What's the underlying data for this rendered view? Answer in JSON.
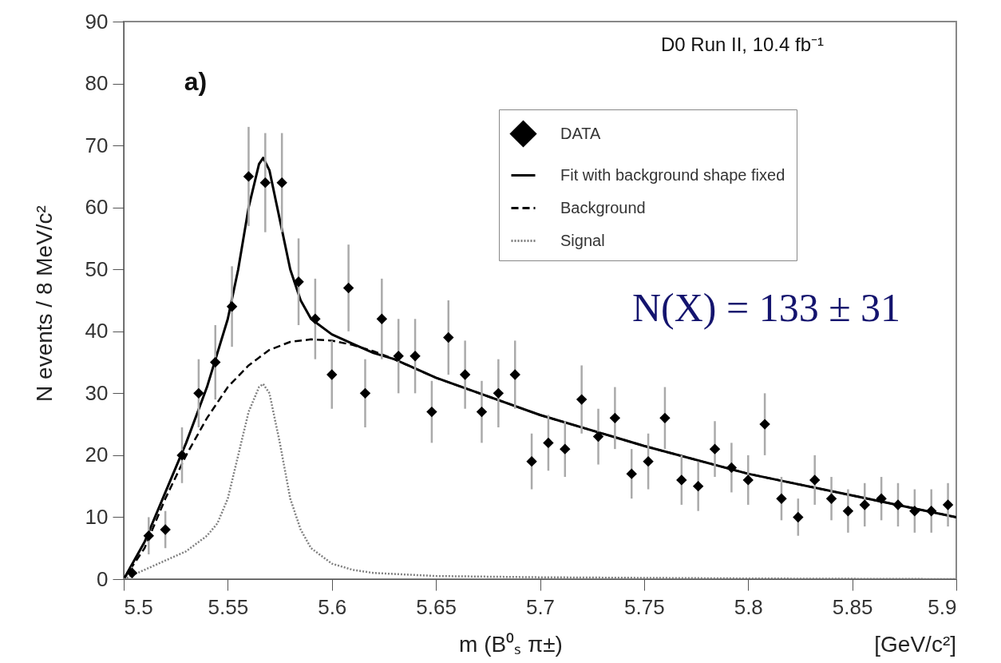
{
  "chart_data": {
    "type": "scatter",
    "xlabel": "m (B⁰ₛ π±)",
    "ylabel": "N events / 8 MeV/c²",
    "annotations": [
      "D0 Run II, 10.4 fb⁻¹",
      "a)",
      "N(X) = 133 ± 31",
      "[GeV/c²]"
    ],
    "xlim": [
      5.5,
      5.9
    ],
    "ylim": [
      0,
      90
    ],
    "xticks": [
      5.5,
      5.55,
      5.6,
      5.65,
      5.7,
      5.75,
      5.8,
      5.85,
      5.9
    ],
    "yticks": [
      0,
      10,
      20,
      30,
      40,
      50,
      60,
      70,
      80,
      90
    ],
    "grid": false,
    "legend": "top right",
    "series": [
      {
        "name": "DATA",
        "type": "scatter",
        "marker": "diamond",
        "color": "#000000",
        "x": [
          5.504,
          5.512,
          5.52,
          5.528,
          5.536,
          5.544,
          5.552,
          5.56,
          5.568,
          5.576,
          5.584,
          5.592,
          5.6,
          5.608,
          5.616,
          5.624,
          5.632,
          5.64,
          5.648,
          5.656,
          5.664,
          5.672,
          5.68,
          5.688,
          5.696,
          5.704,
          5.712,
          5.72,
          5.728,
          5.736,
          5.744,
          5.752,
          5.76,
          5.768,
          5.776,
          5.784,
          5.792,
          5.8,
          5.808,
          5.816,
          5.824,
          5.832,
          5.84,
          5.848,
          5.856,
          5.864,
          5.872,
          5.88,
          5.888,
          5.896
        ],
        "values": [
          1,
          7,
          8,
          20,
          30,
          35,
          44,
          65,
          64,
          64,
          48,
          42,
          33,
          47,
          30,
          42,
          36,
          36,
          27,
          39,
          33,
          27,
          30,
          33,
          19,
          22,
          21,
          29,
          23,
          26,
          17,
          19,
          26,
          16,
          15,
          21,
          18,
          16,
          25,
          13,
          10,
          16,
          13,
          11,
          12,
          13,
          12,
          11,
          11,
          12
        ],
        "errors": [
          1,
          3,
          3,
          4.5,
          5.5,
          6,
          6.5,
          8,
          8,
          8,
          7,
          6.5,
          5.5,
          7,
          5.5,
          6.5,
          6,
          6,
          5,
          6,
          5.5,
          5,
          5.5,
          5.5,
          4.5,
          4.5,
          4.5,
          5.5,
          4.5,
          5,
          4,
          4.5,
          5,
          4,
          4,
          4.5,
          4,
          4,
          5,
          3.5,
          3,
          4,
          3.5,
          3.5,
          3.5,
          3.5,
          3.5,
          3.5,
          3.5,
          3.5
        ]
      },
      {
        "name": "Fit with background shape fixed",
        "type": "line",
        "line_style": "solid",
        "color": "#000000",
        "x": [
          5.5,
          5.51,
          5.52,
          5.53,
          5.54,
          5.55,
          5.555,
          5.56,
          5.565,
          5.567,
          5.57,
          5.575,
          5.58,
          5.585,
          5.59,
          5.6,
          5.61,
          5.62,
          5.63,
          5.65,
          5.7,
          5.75,
          5.8,
          5.85,
          5.9
        ],
        "values": [
          0,
          6,
          14,
          22,
          31,
          42,
          50,
          60,
          67,
          68,
          66,
          58,
          50,
          45,
          42,
          39.5,
          38,
          36.5,
          35.5,
          32.5,
          26.5,
          21.5,
          17,
          13.5,
          10
        ]
      },
      {
        "name": "Background",
        "type": "line",
        "line_style": "dashed",
        "color": "#000000",
        "x": [
          5.5,
          5.51,
          5.52,
          5.53,
          5.54,
          5.55,
          5.56,
          5.57,
          5.58,
          5.59,
          5.6,
          5.61,
          5.62,
          5.63,
          5.65,
          5.7,
          5.75,
          5.8,
          5.85,
          5.9
        ],
        "values": [
          0,
          5,
          13,
          20,
          26,
          31,
          34.5,
          37,
          38.3,
          38.7,
          38.5,
          37.8,
          36.8,
          35.5,
          32.5,
          26.5,
          21.5,
          17,
          13.5,
          10
        ]
      },
      {
        "name": "Signal",
        "type": "line",
        "line_style": "dotted",
        "color": "#808080",
        "x": [
          5.5,
          5.51,
          5.52,
          5.53,
          5.54,
          5.545,
          5.55,
          5.555,
          5.56,
          5.565,
          5.567,
          5.57,
          5.575,
          5.58,
          5.585,
          5.59,
          5.6,
          5.61,
          5.62,
          5.65,
          5.7,
          5.8,
          5.9
        ],
        "values": [
          0,
          1.5,
          3,
          4.5,
          7,
          9,
          13,
          20,
          27,
          31,
          31.5,
          30,
          22,
          13,
          8,
          5,
          2.5,
          1.5,
          1,
          0.5,
          0.3,
          0.1,
          0
        ]
      }
    ]
  }
}
